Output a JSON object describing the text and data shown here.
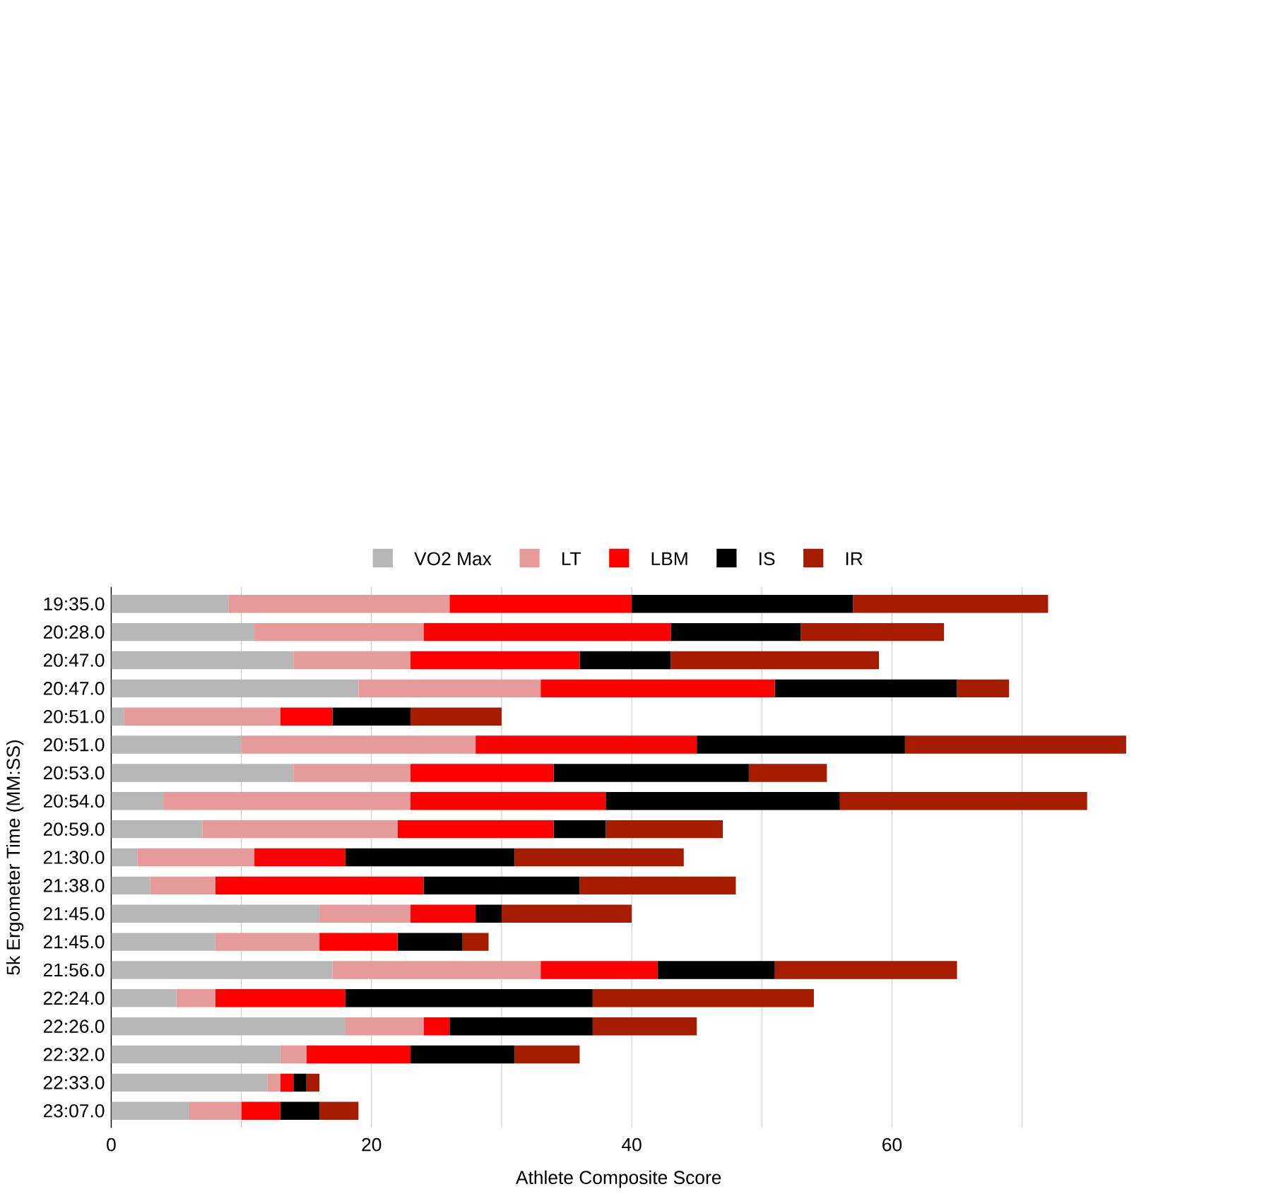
{
  "chart_data": {
    "type": "bar",
    "orientation": "horizontal",
    "stacked": true,
    "xlabel": "Athlete Composite Score",
    "ylabel": "5k Ergometer Time (MM:SS)",
    "categories": [
      "19:35.0",
      "20:28.0",
      "20:47.0",
      "20:47.0",
      "20:51.0",
      "20:51.0",
      "20:53.0",
      "20:54.0",
      "20:59.0",
      "21:30.0",
      "21:38.0",
      "21:45.0",
      "21:45.0",
      "21:56.0",
      "22:24.0",
      "22:26.0",
      "22:32.0",
      "22:33.0",
      "23:07.0"
    ],
    "series": [
      {
        "name": "VO2 Max",
        "color": "#b7b7b7",
        "values": [
          9,
          11,
          14,
          19,
          1,
          10,
          14,
          4,
          7,
          2,
          3,
          16,
          8,
          17,
          5,
          18,
          13,
          12,
          6
        ]
      },
      {
        "name": "LT",
        "color": "#e69a9a",
        "values": [
          17,
          13,
          9,
          14,
          12,
          18,
          9,
          19,
          15,
          9,
          5,
          7,
          8,
          16,
          3,
          6,
          2,
          1,
          4
        ]
      },
      {
        "name": "LBM",
        "color": "#ff0000",
        "values": [
          14,
          19,
          13,
          18,
          4,
          17,
          11,
          15,
          12,
          7,
          16,
          5,
          6,
          9,
          10,
          2,
          8,
          1,
          3
        ]
      },
      {
        "name": "IS",
        "color": "#000000",
        "values": [
          17,
          10,
          7,
          14,
          6,
          16,
          15,
          18,
          4,
          13,
          12,
          2,
          5,
          9,
          19,
          11,
          8,
          1,
          3
        ]
      },
      {
        "name": "IR",
        "color": "#a61c00",
        "values": [
          15,
          11,
          16,
          4,
          7,
          17,
          6,
          19,
          9,
          13,
          12,
          10,
          2,
          14,
          17,
          8,
          5,
          1,
          3
        ]
      }
    ],
    "xlim": [
      0,
      78
    ],
    "xticks": [
      0,
      {
        "value": 10,
        "label": null
      },
      20,
      {
        "value": 30,
        "label": null
      },
      40,
      {
        "value": 50,
        "label": null
      },
      60,
      {
        "value": 70,
        "label": null
      }
    ],
    "grid": "x",
    "legend": "top"
  }
}
